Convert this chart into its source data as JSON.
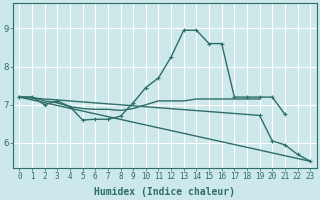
{
  "xlabel": "Humidex (Indice chaleur)",
  "xlim": [
    -0.5,
    23.5
  ],
  "ylim": [
    5.35,
    9.65
  ],
  "bg_color": "#cde8ea",
  "grid_color": "#ffffff",
  "line_color": "#2e6e68",
  "yticks": [
    6,
    7,
    8,
    9
  ],
  "xtick_labels": [
    "0",
    "1",
    "2",
    "3",
    "4",
    "5",
    "6",
    "7",
    "8",
    "9",
    "10",
    "11",
    "12",
    "13",
    "14",
    "15",
    "16",
    "17",
    "18",
    "19",
    "20",
    "21",
    "22",
    "23"
  ],
  "tick_fontsize": 5.5,
  "label_fontsize": 7.0,
  "line1_x": [
    0,
    1,
    2,
    3,
    4,
    5,
    6,
    7,
    8,
    9,
    10,
    11,
    12,
    13,
    14,
    15,
    16,
    17,
    18,
    19,
    20,
    21
  ],
  "line1_y": [
    7.2,
    7.2,
    7.0,
    7.1,
    6.95,
    6.6,
    6.62,
    6.62,
    6.7,
    7.05,
    7.45,
    7.7,
    8.25,
    8.95,
    8.95,
    8.6,
    8.6,
    7.2,
    7.2,
    7.2,
    7.2,
    6.75
  ],
  "line2_x": [
    0,
    1,
    2,
    3,
    4,
    5,
    6,
    7,
    8,
    9,
    10,
    11,
    12,
    13,
    14,
    15,
    16,
    17,
    18,
    19
  ],
  "line2_y": [
    7.2,
    7.2,
    7.1,
    7.05,
    6.95,
    6.9,
    6.88,
    6.88,
    6.85,
    6.9,
    7.0,
    7.1,
    7.1,
    7.1,
    7.15,
    7.15,
    7.15,
    7.15,
    7.15,
    7.15
  ],
  "line3_x": [
    0,
    23
  ],
  "line3_y": [
    7.2,
    5.52
  ],
  "line4_x": [
    0,
    19,
    20,
    21,
    22,
    23
  ],
  "line4_y": [
    7.2,
    6.72,
    6.05,
    5.95,
    5.7,
    5.52
  ]
}
